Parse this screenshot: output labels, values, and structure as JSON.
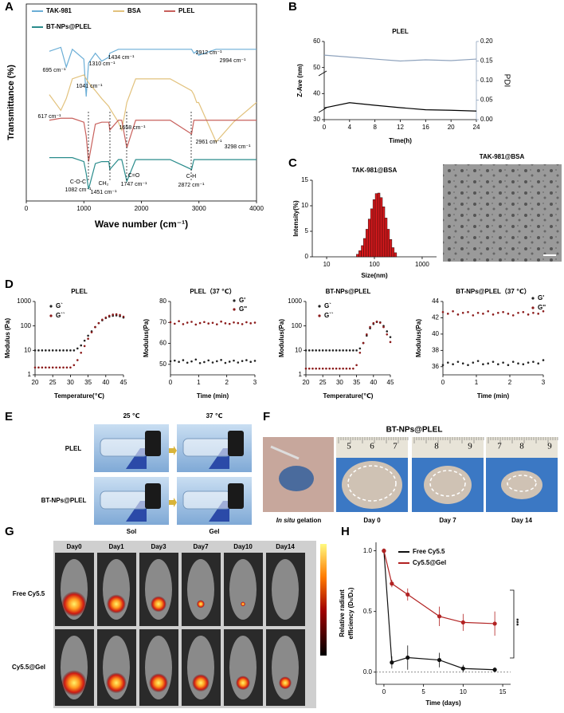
{
  "panel_letters": [
    "A",
    "B",
    "C",
    "D",
    "E",
    "F",
    "G",
    "H"
  ],
  "chart_data": [
    {
      "type": "line",
      "xlabel": "Wave number (cm⁻¹)",
      "ylabel": "Transmittance (%)",
      "xlim": [
        0,
        4000
      ],
      "xticks": [
        0,
        1000,
        2000,
        3000,
        4000
      ],
      "ylim": [
        0,
        100
      ],
      "x": [
        400,
        600,
        695,
        800,
        1000,
        1041,
        1082,
        1200,
        1310,
        1434,
        1451,
        1600,
        1658,
        1747,
        1900,
        2500,
        2872,
        2912,
        2961,
        2994,
        3298,
        3600,
        4000
      ],
      "series": [
        {
          "name": "TAK-981",
          "color": "#6baed6",
          "values": [
            76,
            78,
            68,
            77,
            72,
            53,
            70,
            75,
            71,
            73,
            75,
            77,
            77,
            77,
            77,
            77,
            77,
            75,
            76,
            74,
            77,
            77,
            77
          ]
        },
        {
          "name": "BSA",
          "color": "#e2c27d",
          "values": [
            54,
            46,
            52,
            62,
            64,
            62,
            60,
            56,
            52,
            48,
            47,
            40,
            36,
            50,
            62,
            62,
            56,
            54,
            50,
            50,
            30,
            40,
            50
          ]
        },
        {
          "name": "PLEL",
          "color": "#c8605c",
          "values": [
            41,
            42,
            42,
            42,
            40,
            33,
            20,
            39,
            40,
            40,
            36,
            41,
            41,
            27,
            41,
            41,
            34,
            41,
            41,
            41,
            41,
            41,
            41
          ]
        },
        {
          "name": "BT-NPs@PLEL",
          "color": "#2a8c8c",
          "values": [
            22,
            22,
            22,
            22,
            20,
            14,
            6,
            19,
            20,
            20,
            16,
            21,
            21,
            10,
            21,
            21,
            16,
            21,
            21,
            21,
            21,
            21,
            21
          ]
        }
      ],
      "annotations": [
        "695 cm⁻¹",
        "1041 cm⁻¹",
        "1310 cm⁻¹",
        "1434 cm⁻¹",
        "2912 cm⁻¹",
        "2994 cm⁻¹",
        "617 cm⁻¹",
        "1658 cm⁻¹",
        "2961 cm⁻¹",
        "3298 cm⁻¹",
        "C-O-C",
        "1082 cm⁻¹",
        "CH₂",
        "1451 cm⁻¹",
        "C=O",
        "1747 cm⁻¹",
        "C-H",
        "2872 cm⁻¹"
      ]
    },
    {
      "type": "line",
      "title": "PLEL",
      "xlabel": "Time(h)",
      "ylabel": "Z-Ave (nm)",
      "y2label": "PDI",
      "xlim": [
        0,
        24
      ],
      "xticks": [
        0,
        4,
        8,
        12,
        16,
        20,
        24
      ],
      "ylim": [
        30,
        60
      ],
      "yticks": [
        30,
        40,
        50,
        60
      ],
      "y2lim": [
        0,
        0.2
      ],
      "y2ticks": [
        {
          "value": 0,
          "label": "0.00"
        },
        {
          "value": 0.05,
          "label": "0.05"
        },
        {
          "value": 0.1,
          "label": "0.10"
        },
        {
          "value": 0.15,
          "label": "0.15"
        },
        {
          "value": 0.2,
          "label": "0.20"
        }
      ],
      "y2color": "#8fa3bd",
      "x": [
        0,
        4,
        8,
        12,
        16,
        20,
        24
      ],
      "series": [
        {
          "color": "#000000",
          "values": [
            34.5,
            36.5,
            35.5,
            34.6,
            33.8,
            33.6,
            33.3
          ]
        },
        {
          "color": "#8fa3bd",
          "axis": "y2",
          "values": [
            0.165,
            0.16,
            0.155,
            0.15,
            0.153,
            0.151,
            0.155
          ]
        }
      ]
    },
    {
      "type": "histogram",
      "title": "TAK-981@BSA",
      "xlabel": "Size(nm)",
      "ylabel": "Intensity(%)",
      "xscale": "log",
      "xlim": [
        5,
        2000
      ],
      "xticks": [
        10,
        100,
        1000
      ],
      "ylim": [
        0,
        15
      ],
      "yticks": [
        0,
        5,
        10,
        15
      ],
      "bins": [
        42,
        47,
        53,
        59,
        66,
        74,
        83,
        93,
        104,
        117,
        131,
        147,
        165,
        185,
        207,
        232,
        260,
        292
      ],
      "values": [
        0.5,
        1.2,
        2.2,
        3.6,
        5.4,
        7.4,
        9.4,
        11.2,
        12.4,
        12.5,
        11.6,
        9.8,
        7.6,
        5.4,
        3.4,
        1.8,
        0.8
      ],
      "color": "#d7191c"
    },
    {
      "type": "scatter",
      "title": "PLEL",
      "xlabel": "Temperature(℃)",
      "ylabel": "Modulus (Pa)",
      "yscale": "log",
      "xlim": [
        20,
        45
      ],
      "xticks": [
        20,
        25,
        30,
        35,
        40,
        45
      ],
      "ylim": [
        1,
        1000
      ],
      "yticks": [
        1,
        10,
        100,
        1000
      ],
      "x": [
        20,
        21,
        22,
        23,
        24,
        25,
        26,
        27,
        28,
        29,
        30,
        31,
        32,
        33,
        34,
        35,
        36,
        37,
        38,
        39,
        40,
        41,
        42,
        43,
        44,
        45
      ],
      "series": [
        {
          "name": "G`",
          "color": "#222222",
          "values": [
            10,
            10,
            10,
            10,
            10,
            10,
            10,
            10,
            10,
            10,
            10,
            10,
            12,
            16,
            25,
            40,
            60,
            90,
            130,
            170,
            210,
            240,
            260,
            270,
            250,
            220
          ]
        },
        {
          "name": "G``",
          "color": "#8b1a1a",
          "values": [
            2,
            2,
            2,
            2,
            2,
            2,
            2,
            2,
            2,
            2,
            2,
            2.5,
            4,
            8,
            15,
            30,
            55,
            90,
            130,
            180,
            220,
            260,
            290,
            300,
            280,
            240
          ]
        }
      ]
    },
    {
      "type": "scatter",
      "title": "PLEL（37 ℃）",
      "xlabel": "Time (min)",
      "ylabel": "Modulus(Pa)",
      "xlim": [
        0,
        3
      ],
      "xticks": [
        0,
        1,
        2,
        3
      ],
      "ylim": [
        45,
        80
      ],
      "yticks": [
        50,
        60,
        70,
        80
      ],
      "x": [
        0,
        0.15,
        0.3,
        0.45,
        0.6,
        0.75,
        0.9,
        1.05,
        1.2,
        1.35,
        1.5,
        1.65,
        1.8,
        1.95,
        2.1,
        2.25,
        2.4,
        2.55,
        2.7,
        2.85,
        3
      ],
      "series": [
        {
          "name": "G'",
          "color": "#222222",
          "values": [
            51.5,
            51.8,
            51.2,
            52,
            50.8,
            51.4,
            52.3,
            50.6,
            51.1,
            51.9,
            50.9,
            51.5,
            52.1,
            50.7,
            51.3,
            51.8,
            50.9,
            51.6,
            52,
            51.2,
            51.7
          ]
        },
        {
          "name": "G''",
          "color": "#8b1a1a",
          "values": [
            70.1,
            69.4,
            70.6,
            69.2,
            69.9,
            70.3,
            69,
            69.7,
            70.2,
            69.5,
            69.8,
            69.1,
            70.4,
            69.6,
            69.3,
            70,
            69.7,
            69.2,
            70.1,
            69.6,
            69.9
          ]
        }
      ]
    },
    {
      "type": "scatter",
      "title": "BT-NPs@PLEL",
      "xlabel": "Temperature(℃)",
      "ylabel": "Modulus(Pa)",
      "yscale": "log",
      "xlim": [
        20,
        45
      ],
      "xticks": [
        20,
        25,
        30,
        35,
        40,
        45
      ],
      "ylim": [
        1,
        1000
      ],
      "yticks": [
        1,
        10,
        100,
        1000
      ],
      "x": [
        20,
        21,
        22,
        23,
        24,
        25,
        26,
        27,
        28,
        29,
        30,
        31,
        32,
        33,
        34,
        35,
        36,
        37,
        38,
        39,
        40,
        41,
        42,
        43,
        44,
        45
      ],
      "series": [
        {
          "name": "G`",
          "color": "#222222",
          "values": [
            10,
            10,
            10,
            10,
            10,
            10,
            10,
            10,
            10,
            10,
            10,
            10,
            10,
            10,
            10,
            10,
            12,
            20,
            40,
            80,
            120,
            145,
            140,
            100,
            60,
            35
          ]
        },
        {
          "name": "G``",
          "color": "#8b1a1a",
          "values": [
            1.8,
            1.8,
            1.8,
            1.8,
            1.8,
            1.8,
            1.8,
            1.8,
            1.8,
            1.8,
            1.8,
            1.8,
            1.8,
            1.8,
            1.8,
            2.5,
            8,
            20,
            45,
            90,
            130,
            150,
            135,
            90,
            45,
            22
          ]
        }
      ]
    },
    {
      "type": "scatter",
      "title": "BT-NPs@PLEL（37 ℃）",
      "xlabel": "Time (min)",
      "ylabel": "Modulus(Pa)",
      "xlim": [
        0,
        3
      ],
      "xticks": [
        0,
        1,
        2,
        3
      ],
      "ylim": [
        35,
        44
      ],
      "yticks": [
        36,
        38,
        40,
        42,
        44
      ],
      "x": [
        0,
        0.15,
        0.3,
        0.45,
        0.6,
        0.75,
        0.9,
        1.05,
        1.2,
        1.35,
        1.5,
        1.65,
        1.8,
        1.95,
        2.1,
        2.25,
        2.4,
        2.55,
        2.7,
        2.85,
        3
      ],
      "series": [
        {
          "name": "G'",
          "color": "#222222",
          "values": [
            36.2,
            36.5,
            36.3,
            36.6,
            36.4,
            36.2,
            36.5,
            36.7,
            36.3,
            36.4,
            36.6,
            36.3,
            36.5,
            36.2,
            36.6,
            36.4,
            36.3,
            36.5,
            36.6,
            36.4,
            36.8
          ]
        },
        {
          "name": "G''",
          "color": "#8b1a1a",
          "values": [
            42.7,
            42.5,
            42.8,
            42.4,
            42.6,
            42.7,
            42.3,
            42.6,
            42.5,
            42.8,
            42.4,
            42.6,
            42.7,
            42.5,
            42.3,
            42.6,
            42.7,
            42.4,
            42.6,
            42.5,
            42.8
          ]
        }
      ]
    },
    {
      "type": "line",
      "xlabel": "Time (days)",
      "ylabel": [
        "Relative radiant",
        "efficiency (Dₜ/D₀)"
      ],
      "xlim": [
        -1,
        16
      ],
      "xticks": [
        0,
        5,
        10,
        15
      ],
      "ylim": [
        -0.1,
        1.07
      ],
      "yticks": [
        {
          "value": 0,
          "label": "0.0"
        },
        {
          "value": 0.5,
          "label": "0.5"
        },
        {
          "value": 1,
          "label": "1.0"
        }
      ],
      "x": [
        0,
        1,
        3,
        7,
        10,
        14
      ],
      "series": [
        {
          "name": "Free Cy5.5",
          "color": "#111111",
          "values": [
            1,
            0.08,
            0.12,
            0.1,
            0.03,
            0.02
          ],
          "errors": [
            0,
            0.05,
            0.1,
            0.06,
            0.03,
            0.02
          ]
        },
        {
          "name": "Cy5.5@Gel",
          "color": "#b22222",
          "values": [
            1,
            0.73,
            0.64,
            0.46,
            0.41,
            0.4
          ],
          "errors": [
            0.02,
            0.03,
            0.05,
            0.08,
            0.07,
            0.1
          ]
        }
      ],
      "annotations": [
        "***"
      ]
    }
  ],
  "photos": {
    "C": {
      "title": "TAK-981@BSA"
    },
    "E": {
      "cols": [
        "25 ℃",
        "37 ℃"
      ],
      "rows": [
        "PLEL",
        "BT-NPs@PLEL"
      ],
      "states": [
        "Sol",
        "Gel"
      ]
    },
    "F": {
      "title": "BT-NPs@PLEL",
      "in_situ": "In situ",
      "gelation": "gelation",
      "ruler": [
        "5",
        "6",
        "7",
        "8",
        "9",
        "7",
        "8",
        "9"
      ],
      "days": [
        "Day 0",
        "Day 7",
        "Day 14"
      ]
    },
    "G": {
      "days": [
        "Day0",
        "Day1",
        "Day3",
        "Day7",
        "Day10",
        "Day14"
      ],
      "rows": [
        "Free Cy5.5",
        "Cy5.5@Gel"
      ]
    }
  }
}
